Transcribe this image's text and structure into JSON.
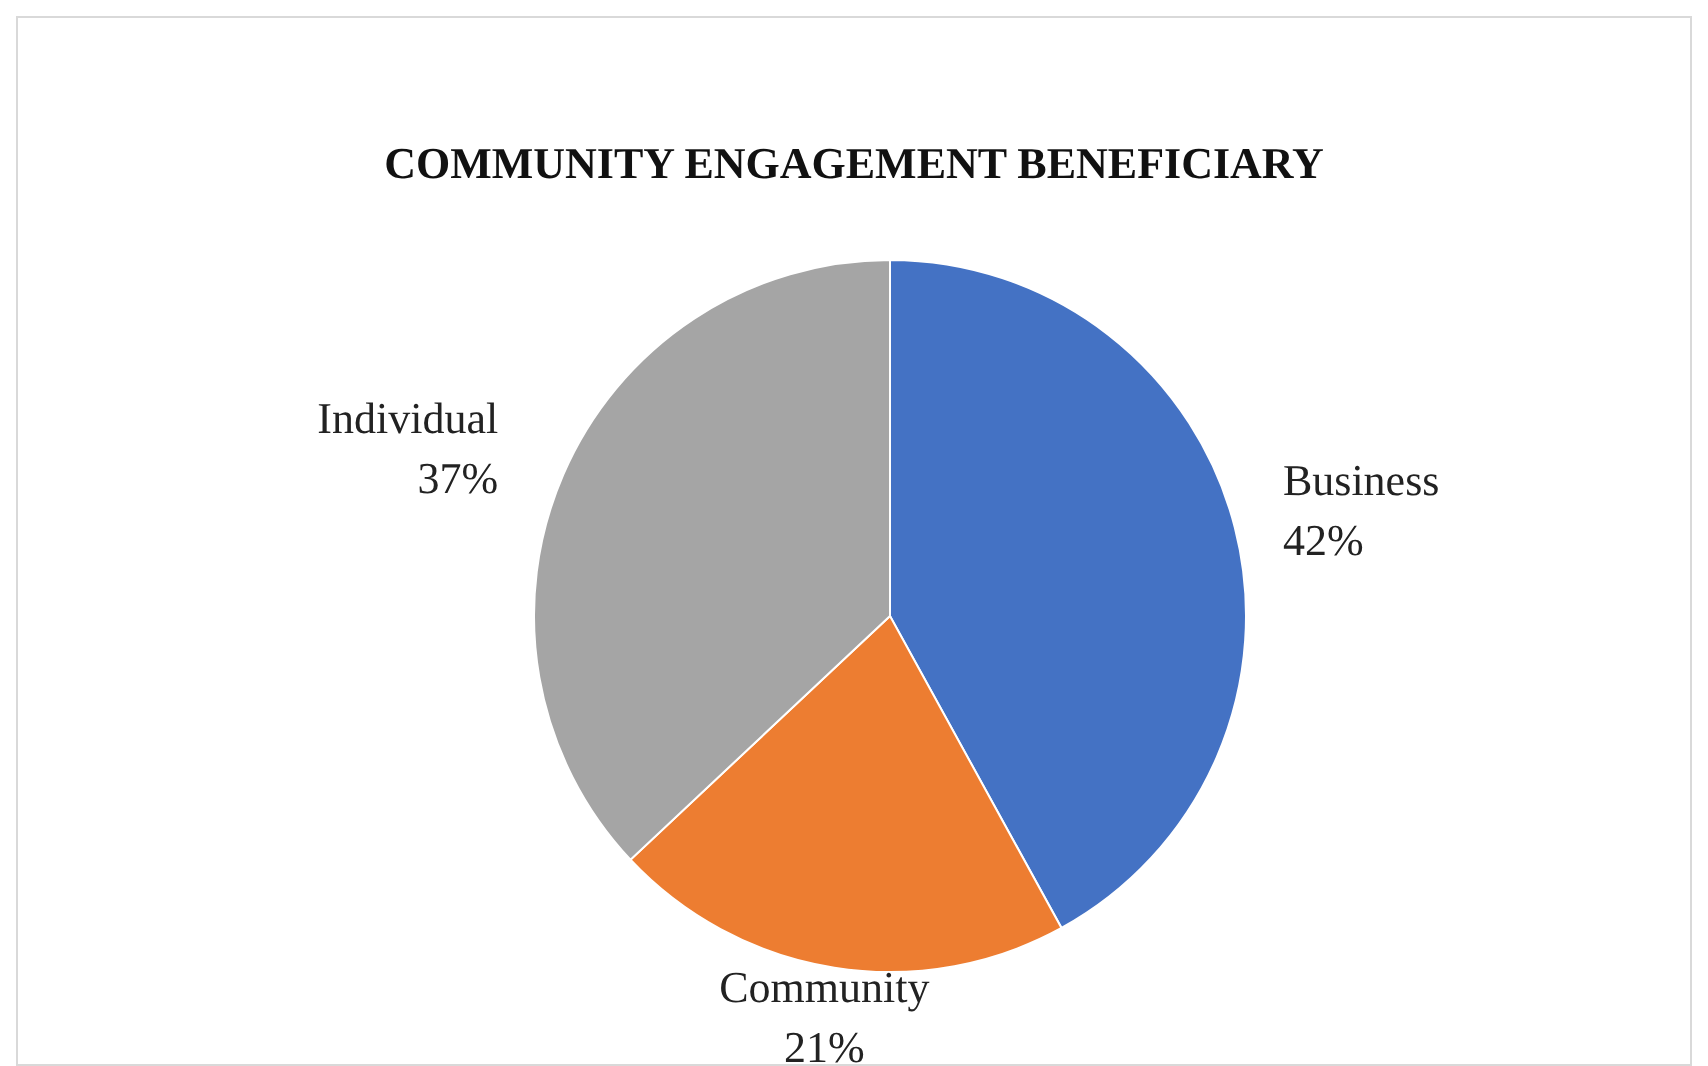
{
  "chart_data": {
    "type": "pie",
    "title": "COMMUNITY ENGAGEMENT BENEFICIARY",
    "categories": [
      "Business",
      "Community",
      "Individual"
    ],
    "values": [
      42,
      21,
      37
    ],
    "colors": [
      "#4472c4",
      "#ed7d31",
      "#a5a5a5"
    ],
    "value_labels": [
      "42%",
      "21%",
      "37%"
    ],
    "legend": false
  }
}
